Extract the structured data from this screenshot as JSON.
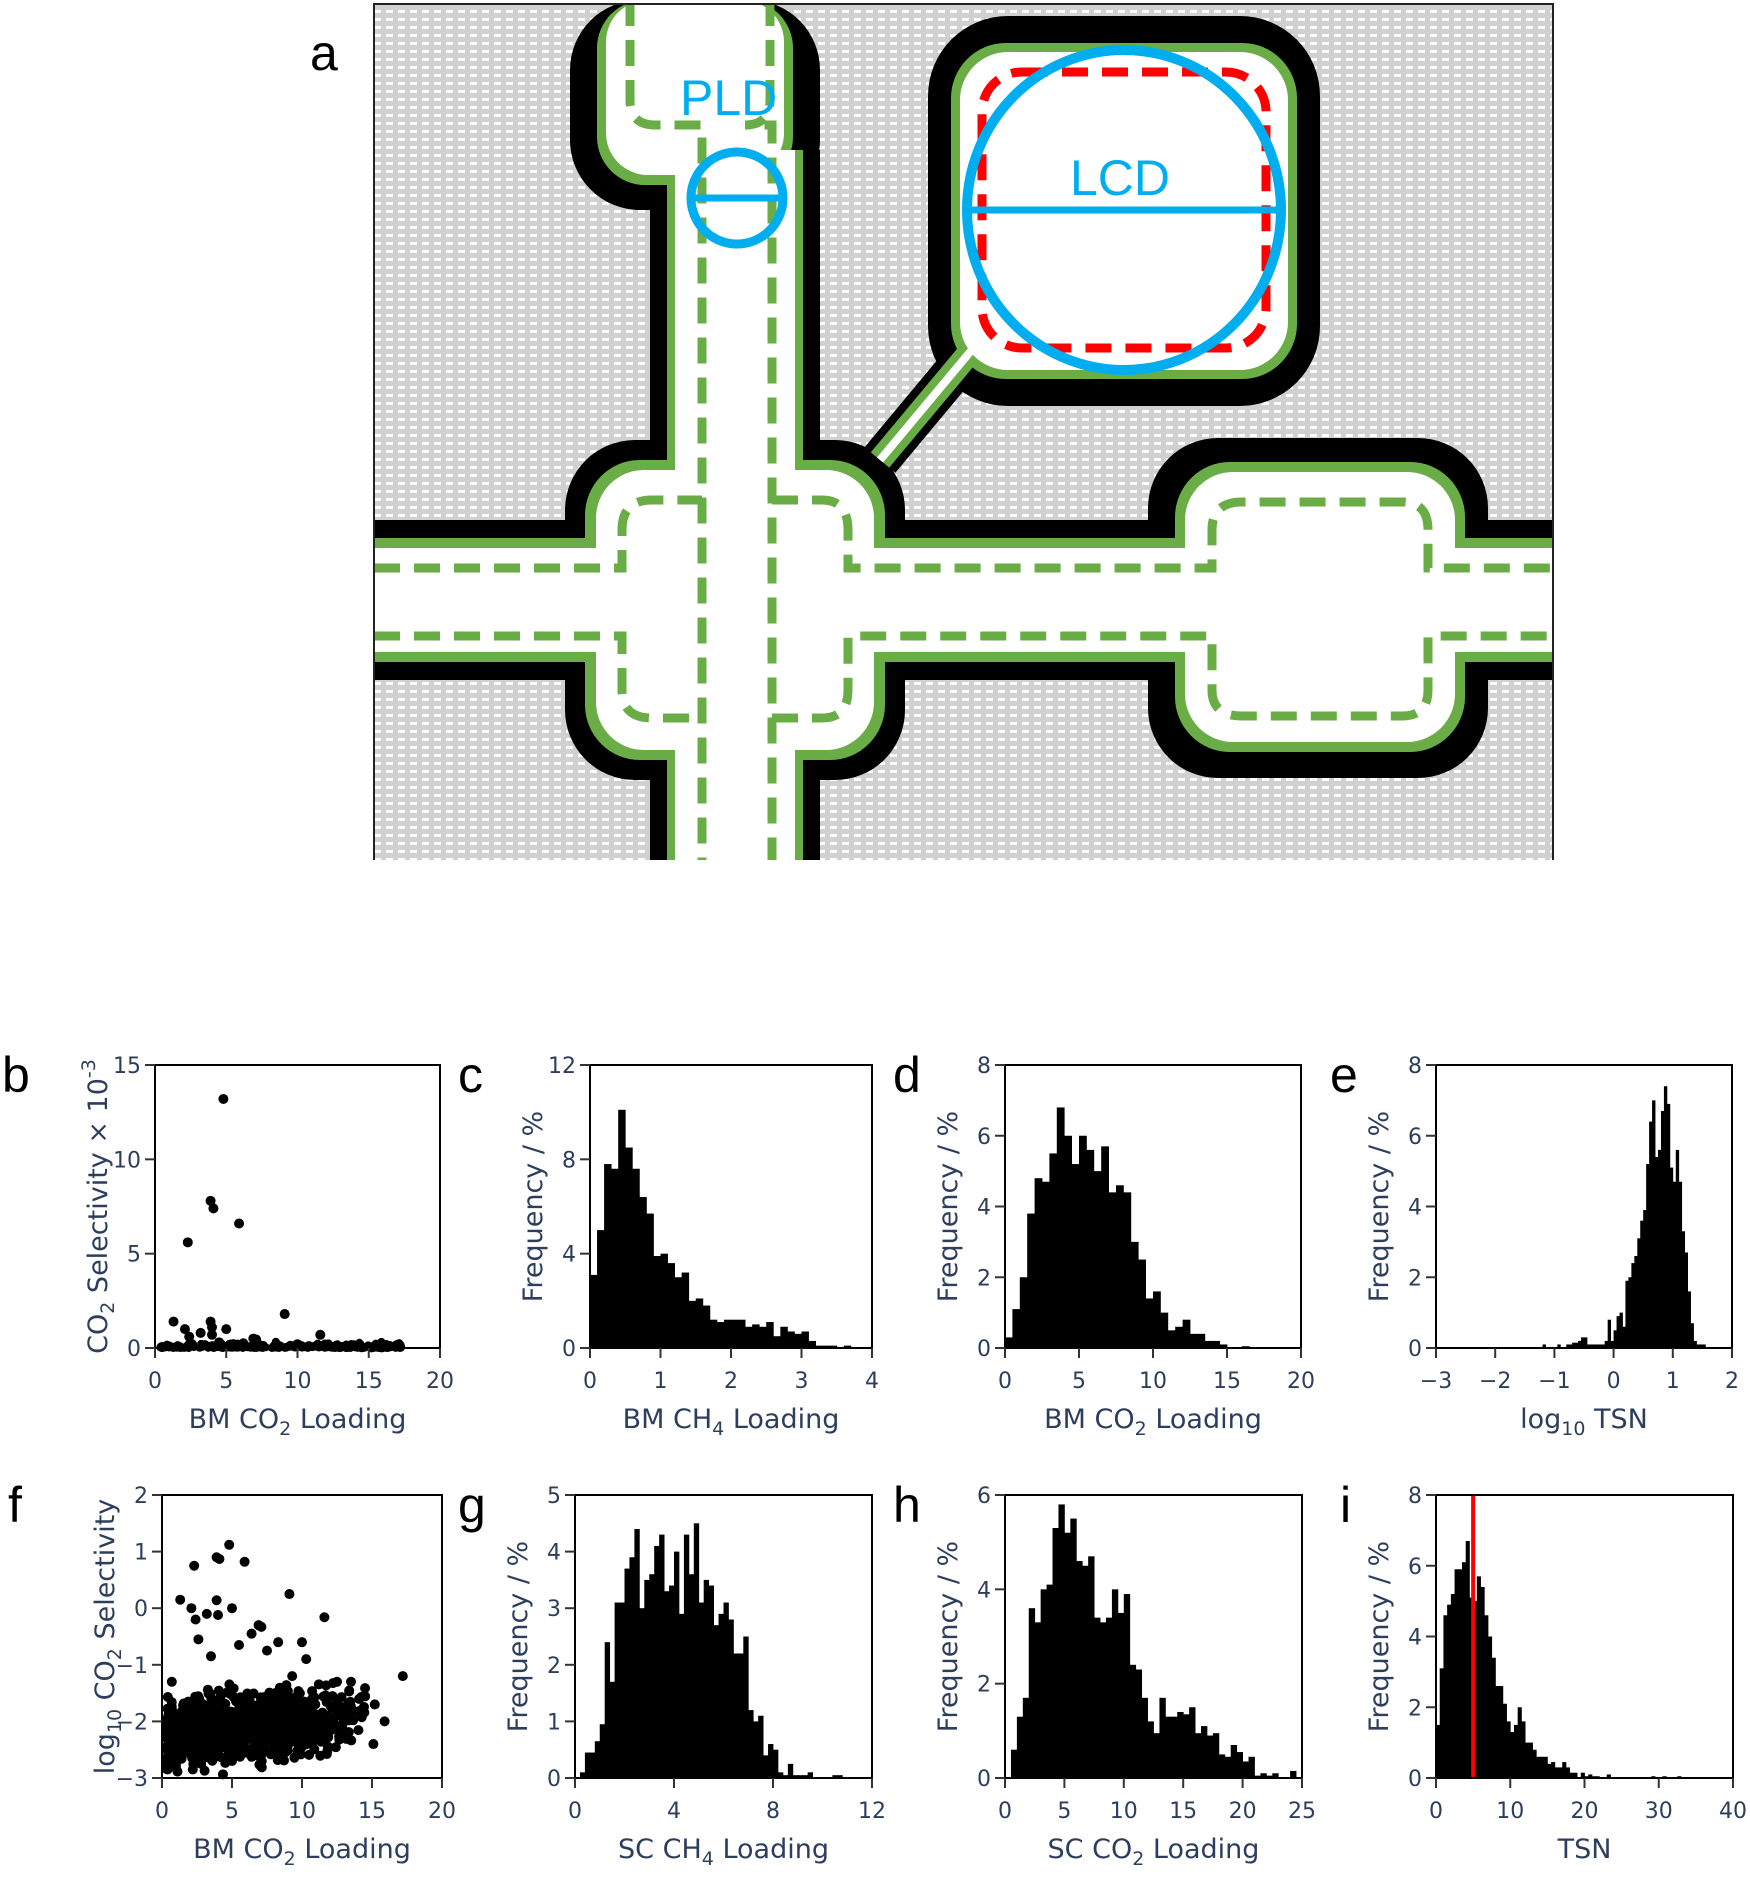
{
  "figure": {
    "panel_a": {
      "letter": "a",
      "labels": {
        "pld": "PLD",
        "lcd": "LCD"
      },
      "colors": {
        "framework_fill": "#d0d0d0",
        "framework_wall": "#000000",
        "accessible_surface": "#6aad46",
        "probe_circle": "#00aeef",
        "lcd_box": "#ff0000",
        "pore": "#ffffff"
      }
    },
    "panels": [
      {
        "letter": "b"
      },
      {
        "letter": "c"
      },
      {
        "letter": "d"
      },
      {
        "letter": "e"
      },
      {
        "letter": "f"
      },
      {
        "letter": "g"
      },
      {
        "letter": "h"
      },
      {
        "letter": "i"
      }
    ]
  },
  "chart_data": [
    {
      "panel": "b",
      "type": "scatter",
      "xlabel": "BM CO2 Loading",
      "xlabel_main": "BM CO",
      "xlabel_sub": "2",
      "xlabel_tail": " Loading",
      "ylabel": "CO2 Selectivity × 10^-3",
      "xlim": [
        0,
        20
      ],
      "ylim": [
        0,
        15
      ],
      "xticks": [
        0,
        5,
        10,
        15,
        20
      ],
      "yticks": [
        0,
        5,
        10,
        15
      ],
      "points": [
        [
          4.8,
          13.2
        ],
        [
          3.9,
          7.8
        ],
        [
          4.1,
          7.4
        ],
        [
          5.9,
          6.6
        ],
        [
          2.3,
          5.6
        ],
        [
          9.1,
          1.8
        ],
        [
          1.3,
          1.4
        ],
        [
          3.9,
          1.4
        ],
        [
          2.1,
          1.0
        ],
        [
          5.0,
          1.0
        ],
        [
          3.2,
          0.8
        ],
        [
          11.6,
          0.7
        ],
        [
          4.0,
          1.1
        ],
        [
          4.0,
          0.7
        ],
        [
          2.4,
          0.6
        ],
        [
          6.9,
          0.5
        ],
        [
          7.1,
          0.45
        ],
        [
          0.5,
          0.05
        ],
        [
          1.0,
          0.08
        ],
        [
          1.6,
          0.1
        ],
        [
          2.6,
          0.2
        ],
        [
          3.5,
          0.15
        ],
        [
          4.5,
          0.3
        ],
        [
          5.5,
          0.2
        ],
        [
          6.2,
          0.25
        ],
        [
          7.5,
          0.1
        ],
        [
          8.5,
          0.2
        ],
        [
          9.5,
          0.12
        ],
        [
          10.0,
          0.2
        ],
        [
          10.8,
          0.1
        ],
        [
          11.5,
          0.08
        ],
        [
          12.5,
          0.06
        ],
        [
          13.5,
          0.05
        ],
        [
          14.5,
          0.04
        ],
        [
          15.2,
          0.03
        ],
        [
          15.9,
          0.03
        ],
        [
          17.2,
          0.05
        ]
      ]
    },
    {
      "panel": "c",
      "type": "bar",
      "xlabel": "BM CH4 Loading",
      "xlabel_main": "BM CH",
      "xlabel_sub": "4",
      "xlabel_tail": " Loading",
      "ylabel": "Frequency / %",
      "xlim": [
        0,
        4
      ],
      "ylim": [
        0,
        12
      ],
      "xticks": [
        0,
        1,
        2,
        3,
        4
      ],
      "yticks": [
        0,
        4,
        8,
        12
      ],
      "bin_start": 0,
      "bin_width": 0.1,
      "values": [
        3.1,
        5.0,
        7.8,
        7.6,
        10.1,
        8.5,
        7.6,
        6.4,
        5.7,
        3.9,
        4.0,
        3.6,
        3.0,
        3.2,
        2.0,
        2.1,
        1.8,
        1.2,
        1.1,
        1.2,
        1.2,
        1.2,
        0.9,
        1.0,
        0.9,
        1.1,
        0.5,
        0.9,
        0.7,
        0.6,
        0.7,
        0.3,
        0.1,
        0.1,
        0.1,
        0.0,
        0.1
      ]
    },
    {
      "panel": "d",
      "type": "bar",
      "xlabel": "BM CO2 Loading",
      "xlabel_main": "BM CO",
      "xlabel_sub": "2",
      "xlabel_tail": " Loading",
      "ylabel": "Frequency / %",
      "xlim": [
        0,
        20
      ],
      "ylim": [
        0,
        8
      ],
      "xticks": [
        0,
        5,
        10,
        15,
        20
      ],
      "yticks": [
        0,
        2,
        4,
        6,
        8
      ],
      "bin_start": 0,
      "bin_width": 0.5,
      "values": [
        0.3,
        1.1,
        2.0,
        3.8,
        4.8,
        4.7,
        5.5,
        6.8,
        6.0,
        5.2,
        6.0,
        5.6,
        5.0,
        5.7,
        4.4,
        4.6,
        4.4,
        3.0,
        2.5,
        1.4,
        1.6,
        1.0,
        0.5,
        0.6,
        0.8,
        0.4,
        0.4,
        0.2,
        0.2,
        0.1,
        0.0,
        0.0,
        0.05,
        0.0,
        0.0,
        0.0,
        0.0,
        0.0,
        0.0,
        0.0
      ]
    },
    {
      "panel": "e",
      "type": "bar",
      "xlabel": "log10 TSN",
      "xlabel_main": "log",
      "xlabel_sub": "10",
      "xlabel_tail": " TSN",
      "ylabel": "Frequency / %",
      "xlim": [
        -3,
        2
      ],
      "ylim": [
        0,
        8
      ],
      "xticks": [
        -3,
        -2,
        -1,
        0,
        1,
        2
      ],
      "yticks": [
        0,
        2,
        4,
        6,
        8
      ],
      "bin_start": -3,
      "bin_width": 0.05,
      "values": [
        0,
        0,
        0,
        0,
        0,
        0,
        0,
        0,
        0,
        0,
        0,
        0,
        0,
        0,
        0,
        0,
        0,
        0,
        0,
        0,
        0,
        0,
        0,
        0,
        0,
        0,
        0,
        0,
        0,
        0,
        0,
        0,
        0,
        0,
        0,
        0,
        0.1,
        0,
        0,
        0,
        0,
        0.1,
        0,
        0,
        0.1,
        0.1,
        0.15,
        0.15,
        0.2,
        0.3,
        0.3,
        0.1,
        0.1,
        0.1,
        0.1,
        0.1,
        0.1,
        0.2,
        0.8,
        0.2,
        0.5,
        0.9,
        1.0,
        0.6,
        1.9,
        2.0,
        2.4,
        2.6,
        3.1,
        3.6,
        3.9,
        5.2,
        6.4,
        7.0,
        5.4,
        5.6,
        6.7,
        7.4,
        6.9,
        5.1,
        4.7,
        5.6,
        4.7,
        3.3,
        2.7,
        1.6,
        0.7,
        0.2,
        0.1,
        0.1,
        0.1,
        0,
        0,
        0,
        0,
        0,
        0,
        0,
        0,
        0
      ]
    },
    {
      "panel": "f",
      "type": "scatter",
      "xlabel": "BM CO2 Loading",
      "xlabel_main": "BM CO",
      "xlabel_sub": "2",
      "xlabel_tail": " Loading",
      "ylabel": "log10 CO2 Selectivity",
      "xlim": [
        0,
        20
      ],
      "ylim": [
        -3,
        2
      ],
      "xticks": [
        0,
        5,
        10,
        15,
        20
      ],
      "yticks": [
        -3,
        -2,
        -1,
        0,
        1,
        2
      ],
      "points": [
        [
          4.8,
          1.12
        ],
        [
          3.9,
          0.9
        ],
        [
          4.1,
          0.87
        ],
        [
          5.9,
          0.82
        ],
        [
          2.3,
          0.75
        ],
        [
          9.1,
          0.25
        ],
        [
          1.3,
          0.15
        ],
        [
          3.9,
          0.14
        ],
        [
          2.1,
          0.0
        ],
        [
          5.0,
          0.0
        ],
        [
          3.2,
          -0.1
        ],
        [
          11.6,
          -0.16
        ],
        [
          4.0,
          -0.12
        ],
        [
          2.4,
          -0.2
        ],
        [
          6.9,
          -0.3
        ],
        [
          7.1,
          -0.33
        ],
        [
          0.7,
          -1.3
        ],
        [
          17.2,
          -1.2
        ],
        [
          15.9,
          -2.0
        ],
        [
          15.2,
          -1.7
        ],
        [
          15.1,
          -2.4
        ],
        [
          13.5,
          -1.3
        ],
        [
          12.5,
          -1.3
        ],
        [
          10.0,
          -0.6
        ],
        [
          8.3,
          -0.6
        ],
        [
          2.6,
          -0.55
        ],
        [
          3.5,
          -0.85
        ],
        [
          5.5,
          -0.65
        ],
        [
          6.4,
          -0.45
        ],
        [
          7.5,
          -0.75
        ],
        [
          9.3,
          -1.2
        ],
        [
          10.3,
          -0.9
        ],
        [
          0.4,
          -2.85
        ],
        [
          1.0,
          -2.75
        ],
        [
          2.2,
          -2.85
        ],
        [
          2.8,
          -2.75
        ],
        [
          5.0,
          -2.7
        ],
        [
          8.5,
          -2.6
        ]
      ],
      "dense_cloud": {
        "x_range": [
          0.3,
          15.2
        ],
        "y_center": -2.1,
        "y_spread": 0.45,
        "count": 900
      }
    },
    {
      "panel": "g",
      "type": "bar",
      "xlabel": "SC CH4 Loading",
      "xlabel_main": "SC CH",
      "xlabel_sub": "4",
      "xlabel_tail": " Loading",
      "ylabel": "Frequency / %",
      "xlim": [
        0,
        12
      ],
      "ylim": [
        0,
        5
      ],
      "xticks": [
        0,
        4,
        8,
        12
      ],
      "yticks": [
        0,
        1,
        2,
        3,
        4,
        5
      ],
      "bin_start": 0,
      "bin_width": 0.2,
      "values": [
        0,
        0.1,
        0.45,
        0.45,
        0.65,
        0.95,
        2.4,
        1.7,
        3.1,
        3.1,
        3.7,
        3.9,
        4.4,
        3.0,
        3.5,
        3.6,
        4.1,
        4.3,
        3.3,
        3.4,
        4.0,
        2.9,
        4.3,
        3.6,
        4.5,
        3.1,
        3.5,
        3.4,
        2.7,
        2.9,
        3.1,
        2.8,
        2.2,
        2.2,
        2.5,
        1.2,
        1.0,
        1.1,
        0.4,
        0.6,
        0.5,
        0.1,
        0.05,
        0.25,
        0.05,
        0.05,
        0.05,
        0.1,
        0,
        0,
        0,
        0,
        0.05,
        0.05
      ]
    },
    {
      "panel": "h",
      "type": "bar",
      "xlabel": "SC CO2 Loading",
      "xlabel_main": "SC CO",
      "xlabel_sub": "2",
      "xlabel_tail": " Loading",
      "ylabel": "Frequency / %",
      "xlim": [
        0,
        25
      ],
      "ylim": [
        0,
        6
      ],
      "xticks": [
        0,
        5,
        10,
        15,
        20,
        25
      ],
      "yticks": [
        0,
        2,
        4,
        6
      ],
      "bin_start": 0,
      "bin_width": 0.5,
      "values": [
        0,
        0.6,
        1.3,
        1.7,
        3.6,
        3.3,
        4.0,
        4.1,
        5.3,
        5.8,
        5.2,
        5.5,
        4.6,
        4.5,
        4.7,
        3.4,
        3.3,
        3.4,
        4.0,
        3.5,
        3.9,
        2.4,
        2.3,
        1.7,
        1.2,
        0.95,
        1.7,
        1.3,
        1.3,
        1.4,
        1.35,
        1.5,
        0.95,
        1.1,
        0.9,
        0.95,
        0.5,
        0.45,
        0.7,
        0.55,
        0.35,
        0.45,
        0.05,
        0.1,
        0.05,
        0.1,
        0,
        0,
        0.15
      ]
    },
    {
      "panel": "i",
      "type": "bar",
      "xlabel": "TSN",
      "xlabel_main": "TSN",
      "xlabel_sub": "",
      "xlabel_tail": "",
      "ylabel": "Frequency / %",
      "xlim": [
        0,
        40
      ],
      "ylim": [
        0,
        8
      ],
      "xticks": [
        0,
        10,
        20,
        30,
        40
      ],
      "yticks": [
        0,
        2,
        4,
        6,
        8
      ],
      "bin_start": 0,
      "bin_width": 0.5,
      "values": [
        1.5,
        3.1,
        4.6,
        4.9,
        5.2,
        5.9,
        5.9,
        6.1,
        6.7,
        5.1,
        5.0,
        5.7,
        5.4,
        4.6,
        4.0,
        3.4,
        2.6,
        2.6,
        2.1,
        1.6,
        1.3,
        1.5,
        2.0,
        1.6,
        1.0,
        1.0,
        0.8,
        0.6,
        0.6,
        0.6,
        0.4,
        0.45,
        0.3,
        0.3,
        0.45,
        0.3,
        0.15,
        0.15,
        0,
        0.15,
        0.05,
        0.1,
        0.05,
        0.05,
        0,
        0,
        0.1,
        0,
        0,
        0,
        0,
        0,
        0,
        0,
        0,
        0,
        0,
        0,
        0.05,
        0,
        0,
        0.05,
        0,
        0,
        0,
        0.05
      ]
    }
  ],
  "annotations": {
    "panel_i_vertical_line": {
      "x": 5,
      "color": "#ff0000"
    }
  }
}
